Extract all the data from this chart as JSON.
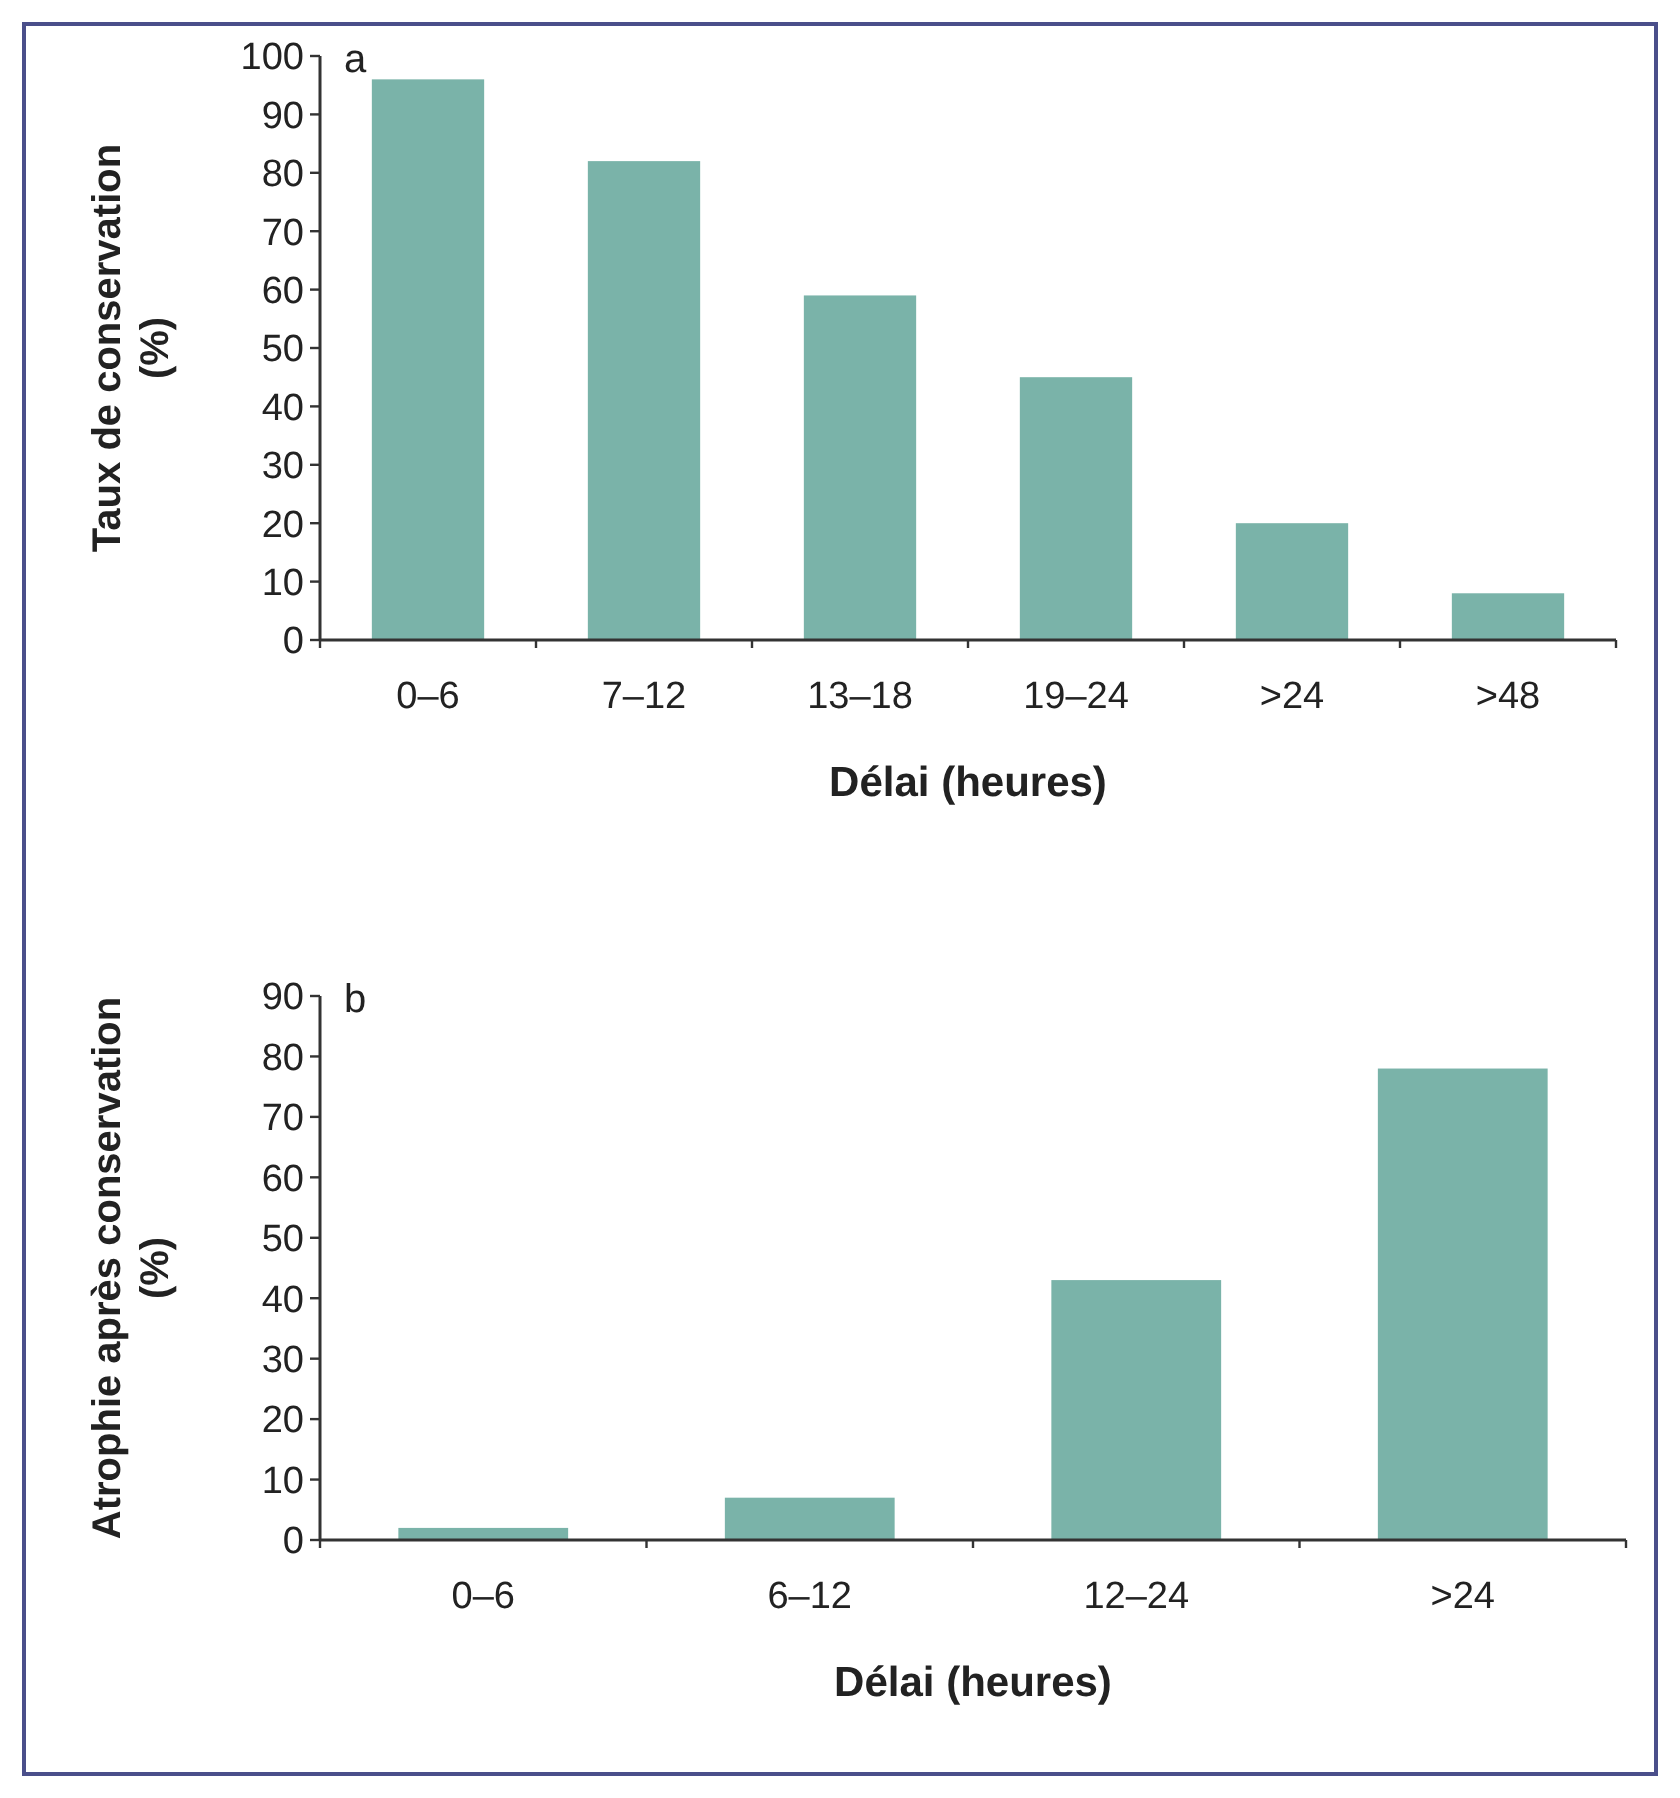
{
  "chart_data": [
    {
      "type": "bar",
      "title": "a",
      "categories": [
        "0–6",
        "7–12",
        "13–18",
        "19–24",
        ">24",
        ">48"
      ],
      "values": [
        96,
        82,
        59,
        45,
        20,
        8
      ],
      "color": "#7ab3a9",
      "ylim": [
        0,
        100
      ],
      "yticks": [
        0,
        10,
        20,
        30,
        40,
        50,
        60,
        70,
        80,
        90,
        100
      ],
      "xlabel": "Délai (heures)",
      "ylabel": "Taux de conservation\n(%)"
    },
    {
      "type": "bar",
      "title": "b",
      "categories": [
        "0–6",
        "6–12",
        "12–24",
        ">24"
      ],
      "values": [
        2,
        7,
        43,
        78
      ],
      "color": "#7ab3a9",
      "ylim": [
        0,
        90
      ],
      "yticks": [
        0,
        10,
        20,
        30,
        40,
        50,
        60,
        70,
        80,
        90
      ],
      "xlabel": "Délai (heures)",
      "ylabel": "Atrophie après conservation\n(%)"
    }
  ]
}
